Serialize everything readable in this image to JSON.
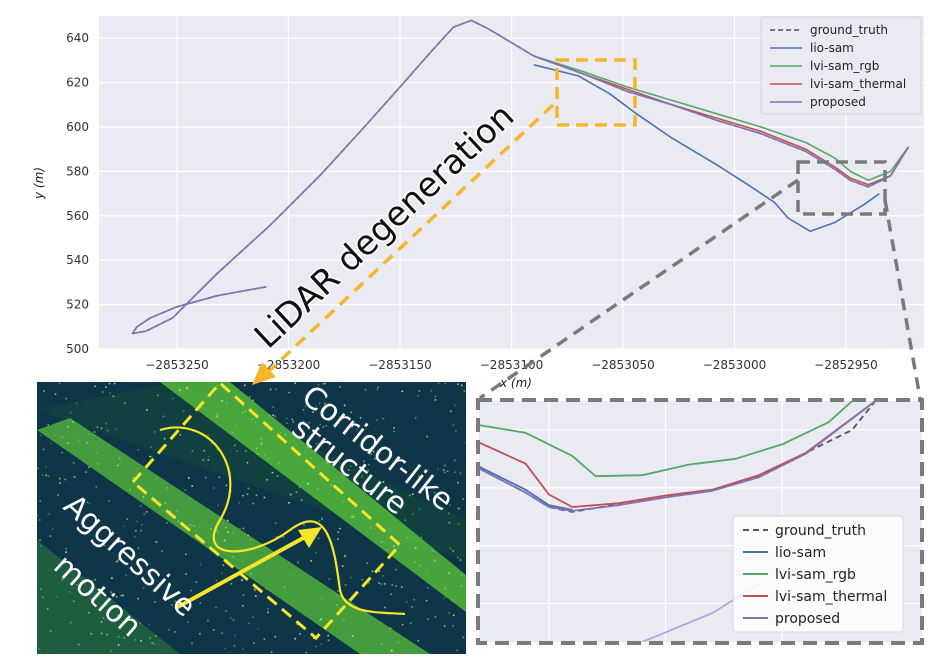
{
  "chart_data": [
    {
      "type": "line",
      "xlabel": "x (m)",
      "ylabel": "y (m)",
      "xlim": [
        -2853285,
        -2852915
      ],
      "ylim": [
        500,
        650
      ],
      "xticks": [
        -2853250,
        -2853200,
        -2853150,
        -2853100,
        -2853050,
        -2853000,
        -2852950
      ],
      "xtick_labels": [
        "−2853250",
        "−2853200",
        "−2853150",
        "−2853100",
        "−2853050",
        "−2853000",
        "−2852950"
      ],
      "yticks": [
        500,
        520,
        540,
        560,
        580,
        600,
        620,
        640
      ],
      "ytick_labels": [
        "500",
        "520",
        "540",
        "560",
        "580",
        "600",
        "620",
        "640"
      ],
      "grid": true,
      "legend_position": "top-right",
      "series": [
        {
          "name": "ground_truth",
          "color": "#555555",
          "dashed": true,
          "x": [
            -2853210,
            -2853232,
            -2853250,
            -2853262,
            -2853268,
            -2853270,
            -2853264,
            -2853252,
            -2853232,
            -2853208,
            -2853186,
            -2853166,
            -2853150,
            -2853136,
            -2853126,
            -2853118,
            -2853110,
            -2853090,
            -2853068,
            -2853048,
            -2853028,
            -2853008,
            -2852988,
            -2852968,
            -2852955,
            -2852948,
            -2852940,
            -2852930,
            -2852922
          ],
          "y": [
            528,
            524,
            519,
            514,
            510,
            507,
            508,
            514,
            534,
            556,
            578,
            600,
            618,
            634,
            645,
            648,
            644,
            632,
            624,
            616,
            610,
            603,
            597,
            589,
            581,
            576,
            573,
            578,
            591
          ]
        },
        {
          "name": "lio-sam",
          "color": "#4c72b0",
          "dashed": false,
          "x": [
            -2853090,
            -2853070,
            -2853056,
            -2853044,
            -2853028,
            -2853008,
            -2852994,
            -2852982,
            -2852976,
            -2852966,
            -2852955,
            -2852942,
            -2852935
          ],
          "y": [
            628,
            623,
            615,
            606,
            595,
            583,
            574,
            566,
            559,
            553,
            557,
            565,
            570
          ]
        },
        {
          "name": "lvi-sam_rgb",
          "color": "#55a868",
          "dashed": false,
          "x": [
            -2853090,
            -2853068,
            -2853048,
            -2853028,
            -2853008,
            -2852988,
            -2852968,
            -2852955,
            -2852948,
            -2852940,
            -2852930,
            -2852922
          ],
          "y": [
            632,
            625,
            618,
            612,
            606,
            600,
            593,
            586,
            580,
            576,
            580,
            591
          ]
        },
        {
          "name": "lvi-sam_thermal",
          "color": "#c44e52",
          "dashed": false,
          "x": [
            -2853090,
            -2853068,
            -2853048,
            -2853028,
            -2853008,
            -2852988,
            -2852968,
            -2852955,
            -2852948,
            -2852940,
            -2852930,
            -2852922
          ],
          "y": [
            632,
            624,
            617,
            610,
            604,
            598,
            590,
            582,
            577,
            574,
            578,
            591
          ]
        },
        {
          "name": "proposed",
          "color": "#8172b2",
          "dashed": false,
          "x": [
            -2853210,
            -2853232,
            -2853250,
            -2853262,
            -2853268,
            -2853270,
            -2853264,
            -2853252,
            -2853232,
            -2853208,
            -2853186,
            -2853166,
            -2853150,
            -2853136,
            -2853126,
            -2853118,
            -2853110,
            -2853090,
            -2853068,
            -2853048,
            -2853028,
            -2853008,
            -2852988,
            -2852968,
            -2852955,
            -2852948,
            -2852940,
            -2852930,
            -2852922
          ],
          "y": [
            528,
            524,
            519,
            514,
            510,
            507,
            508,
            514,
            534,
            556,
            578,
            600,
            618,
            634,
            645,
            648,
            644,
            632,
            624,
            616,
            610,
            603,
            597,
            589,
            581,
            576,
            573,
            578,
            591
          ]
        }
      ]
    },
    {
      "type": "line",
      "xlabel": "",
      "ylabel": "",
      "xlim": [
        -2852961,
        -2852942
      ],
      "ylim": [
        562,
        587
      ],
      "grid": true,
      "legend_position": "bottom-right",
      "series": [
        {
          "name": "ground_truth",
          "color": "#555555",
          "dashed": true,
          "x": [
            -2852961,
            -2852959,
            -2852958,
            -2852957,
            -2852955,
            -2852953,
            -2852951,
            -2852949,
            -2852947,
            -2852945,
            -2852944
          ],
          "y": [
            580,
            577.5,
            576,
            575.5,
            576.3,
            577,
            577.7,
            579.2,
            581.6,
            584,
            587
          ]
        },
        {
          "name": "lio-sam",
          "color": "#4c72b0",
          "dashed": false,
          "x": [
            -2852961,
            -2852959,
            -2852958,
            -2852957
          ],
          "y": [
            580.2,
            577.8,
            576.2,
            575.7
          ]
        },
        {
          "name": "lvi-sam_rgb",
          "color": "#55a868",
          "dashed": false,
          "x": [
            -2852961,
            -2852959,
            -2852957,
            -2852956,
            -2852954,
            -2852952,
            -2852950,
            -2852948,
            -2852946,
            -2852945
          ],
          "y": [
            584.5,
            583.7,
            581.3,
            579.2,
            579.3,
            580.4,
            581,
            582.5,
            584.8,
            587
          ]
        },
        {
          "name": "lvi-sam_thermal",
          "color": "#c44e52",
          "dashed": false,
          "x": [
            -2852961,
            -2852959,
            -2852958,
            -2852957,
            -2852955,
            -2852953,
            -2852951,
            -2852949,
            -2852947,
            -2852944
          ],
          "y": [
            582.7,
            580.5,
            577.3,
            576,
            576.4,
            577.2,
            577.8,
            579.3,
            581.6,
            587
          ]
        },
        {
          "name": "proposed",
          "color": "#8172b2",
          "dashed": false,
          "x": [
            -2852961,
            -2852959,
            -2852958,
            -2852957,
            -2852955,
            -2852953,
            -2852951,
            -2852949,
            -2852947,
            -2852944
          ],
          "y": [
            580,
            577.5,
            576,
            575.6,
            576.2,
            577,
            577.7,
            579.1,
            581.5,
            587
          ]
        },
        {
          "name": "lio-sam",
          "color": "#a8a8e0",
          "dashed": false,
          "x": [
            -2852954,
            -2852951,
            -2852949
          ],
          "y": [
            562,
            565,
            568
          ]
        }
      ]
    }
  ],
  "annotations": {
    "lidar": "LiDAR degeneration",
    "corridor": "Corridor-like structure",
    "corridor_line1": "Corridor-like",
    "corridor_line2": "structure",
    "aggressive_line1": "Aggressive",
    "aggressive_line2": "motion"
  },
  "colors": {
    "yellow_box": "#f5b629",
    "gray_box": "#7a7a7a",
    "pointcloud_bg": "#0a2a52",
    "pointcloud_green": "#5cc93a"
  }
}
